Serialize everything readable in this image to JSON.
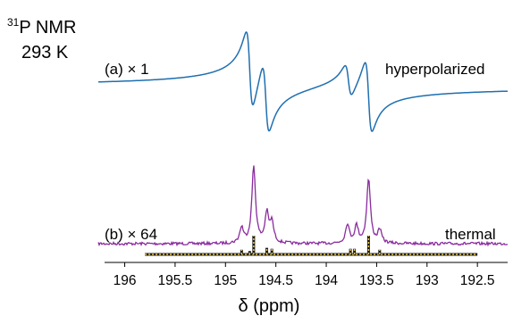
{
  "chart_data": {
    "type": "line",
    "title_lines": [
      "NMR",
      "293 K"
    ],
    "title_superscript": "31",
    "title_nucleus": "P",
    "xlabel": "δ (ppm)",
    "x_axis_reversed": true,
    "xlim": [
      196.2,
      192.2
    ],
    "x_ticks": [
      196,
      195.5,
      195,
      194.5,
      194,
      193.5,
      193,
      192.5
    ],
    "x_tick_labels": [
      "196",
      "195.5",
      "195",
      "194.5",
      "194",
      "193.5",
      "193",
      "192.5"
    ],
    "grid": false,
    "legend": "none",
    "colors": {
      "hyperpolarized": "#1f6fb0",
      "thermal": "#8a2b9e",
      "stick_fill": "#f2d24c",
      "stick_edge": "#1a1a1a"
    },
    "series": [
      {
        "name": "hyperpolarized",
        "panel_label": "(a) × 1",
        "side_label": "hyperpolarized",
        "type": "dispersive",
        "peaks": [
          {
            "position": 194.76,
            "amplitude": 1.0
          },
          {
            "position": 194.6,
            "amplitude": 0.88
          },
          {
            "position": 193.78,
            "amplitude": 0.42
          },
          {
            "position": 193.58,
            "amplitude": 0.9
          }
        ]
      },
      {
        "name": "thermal",
        "panel_label": "(b) × 64",
        "side_label": "thermal",
        "type": "absorptive",
        "peaks": [
          {
            "position": 194.84,
            "amplitude": 0.2
          },
          {
            "position": 194.72,
            "amplitude": 1.0
          },
          {
            "position": 194.59,
            "amplitude": 0.38
          },
          {
            "position": 194.54,
            "amplitude": 0.26
          },
          {
            "position": 193.79,
            "amplitude": 0.25
          },
          {
            "position": 193.7,
            "amplitude": 0.22
          },
          {
            "position": 193.58,
            "amplitude": 0.84
          },
          {
            "position": 193.47,
            "amplitude": 0.17
          }
        ]
      }
    ],
    "stick_spectrum": {
      "x_range": [
        195.8,
        192.5
      ],
      "sticks": [
        {
          "position": 194.84,
          "height": 0.25
        },
        {
          "position": 194.76,
          "height": 0.18
        },
        {
          "position": 194.72,
          "height": 1.0
        },
        {
          "position": 194.59,
          "height": 0.35
        },
        {
          "position": 194.54,
          "height": 0.3
        },
        {
          "position": 193.76,
          "height": 0.3
        },
        {
          "position": 193.72,
          "height": 0.3
        },
        {
          "position": 193.58,
          "height": 1.0
        },
        {
          "position": 193.47,
          "height": 0.25
        }
      ]
    }
  }
}
